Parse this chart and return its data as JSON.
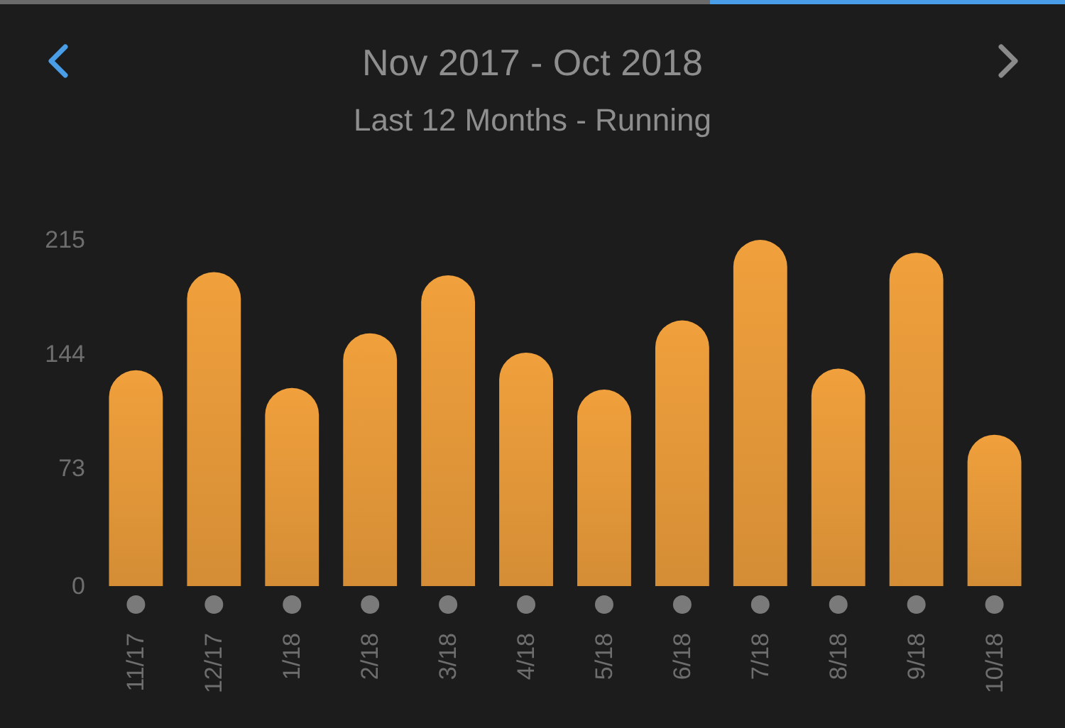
{
  "chart_data": {
    "type": "bar",
    "title": "Nov 2017 - Oct 2018",
    "subtitle": "Last 12 Months - Running",
    "categories": [
      "11/17",
      "12/17",
      "1/18",
      "2/18",
      "3/18",
      "4/18",
      "5/18",
      "6/18",
      "7/18",
      "8/18",
      "9/18",
      "10/18"
    ],
    "values": [
      134,
      195,
      123,
      157,
      193,
      145,
      122,
      165,
      215,
      135,
      207,
      94
    ],
    "color": "#f0a03c",
    "ylim": [
      0,
      215
    ],
    "yticks": [
      0,
      73,
      144,
      215
    ]
  }
}
